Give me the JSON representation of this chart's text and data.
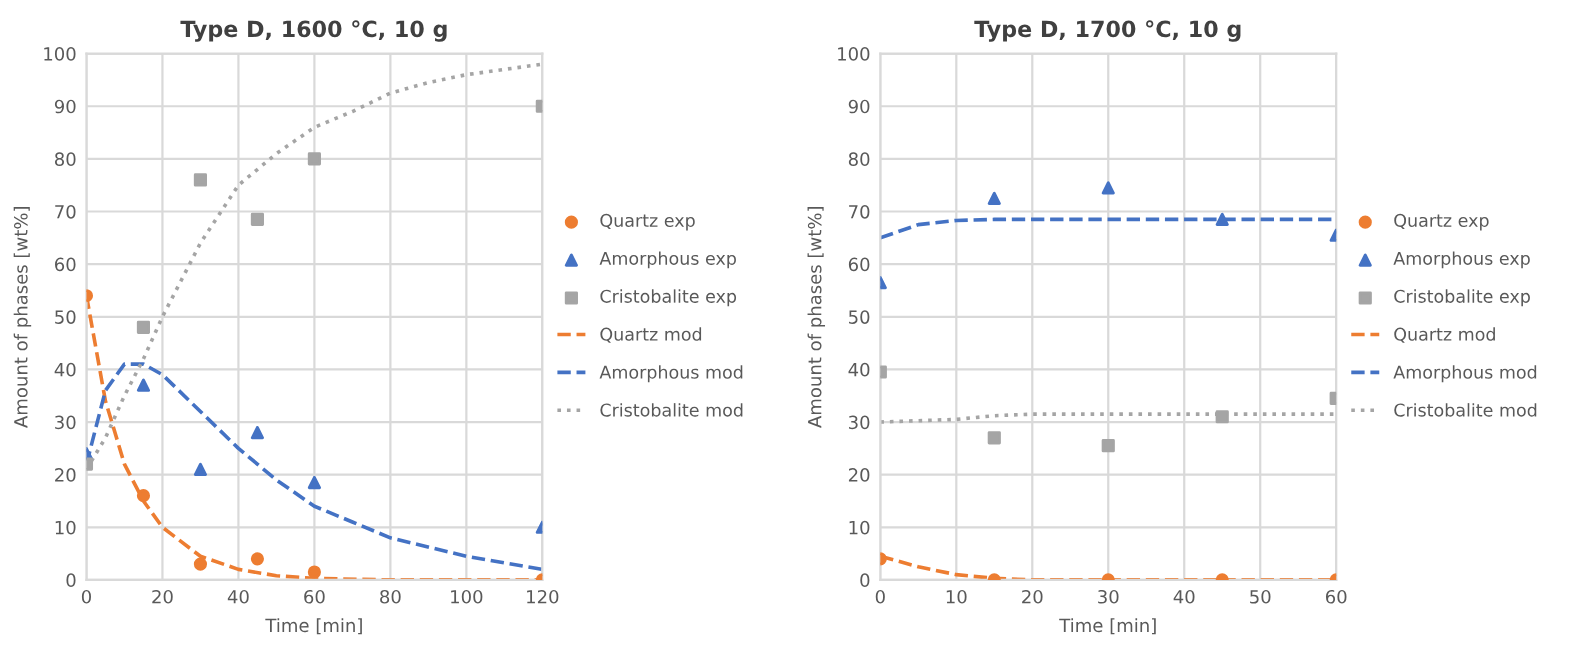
{
  "chart_data": [
    {
      "type": "scatter",
      "title": "Type D, 1600 °C, 10 g",
      "xlabel": "Time [min]",
      "ylabel": "Amount of phases [wt%]",
      "xlim": [
        0,
        120
      ],
      "xticks": [
        0,
        20,
        40,
        60,
        80,
        100,
        120
      ],
      "ylim": [
        0,
        100
      ],
      "yticks": [
        0,
        10,
        20,
        30,
        40,
        50,
        60,
        70,
        80,
        90,
        100
      ],
      "grid": true,
      "legend": "right",
      "series": [
        {
          "name": "Quartz exp",
          "marker": "circle",
          "color": "#ed7d31",
          "x": [
            0,
            15,
            30,
            45,
            60,
            120
          ],
          "values": [
            54,
            16,
            3,
            4,
            1.5,
            0
          ]
        },
        {
          "name": "Amorphous exp",
          "marker": "triangle",
          "color": "#4472c4",
          "x": [
            0,
            15,
            30,
            45,
            60,
            120
          ],
          "values": [
            24,
            37,
            21,
            28,
            18.5,
            10
          ]
        },
        {
          "name": "Cristobalite exp",
          "marker": "square",
          "color": "#a5a5a5",
          "x": [
            0,
            15,
            30,
            45,
            60,
            120
          ],
          "values": [
            22,
            48,
            76,
            68.5,
            80,
            90
          ]
        },
        {
          "name": "Quartz mod",
          "type": "line",
          "line_style": "dashed",
          "color": "#ed7d31",
          "x": [
            0,
            5,
            10,
            15,
            20,
            30,
            40,
            50,
            60,
            80,
            100,
            120
          ],
          "values": [
            54,
            34,
            22,
            15,
            10,
            4.5,
            2,
            0.8,
            0.3,
            0,
            0,
            0
          ]
        },
        {
          "name": "Amorphous mod",
          "type": "line",
          "line_style": "dashed",
          "color": "#4472c4",
          "x": [
            0,
            5,
            10,
            15,
            20,
            30,
            40,
            50,
            60,
            70,
            80,
            100,
            120
          ],
          "values": [
            22,
            36,
            41,
            41,
            39,
            32,
            25,
            19,
            14,
            11,
            8,
            4.5,
            2
          ]
        },
        {
          "name": "Cristobalite mod",
          "type": "line",
          "line_style": "dotted",
          "color": "#a5a5a5",
          "x": [
            0,
            5,
            10,
            15,
            20,
            30,
            40,
            50,
            60,
            70,
            80,
            90,
            100,
            120
          ],
          "values": [
            21,
            27,
            35,
            42,
            50,
            64,
            75,
            81,
            86,
            89,
            92.5,
            94.5,
            96,
            98
          ]
        }
      ]
    },
    {
      "type": "scatter",
      "title": "Type D, 1700 °C, 10 g",
      "xlabel": "Time [min]",
      "ylabel": "Amount of phases [wt%]",
      "xlim": [
        0,
        60
      ],
      "xticks": [
        0,
        10,
        20,
        30,
        40,
        50,
        60
      ],
      "ylim": [
        0,
        100
      ],
      "yticks": [
        0,
        10,
        20,
        30,
        40,
        50,
        60,
        70,
        80,
        90,
        100
      ],
      "grid": true,
      "legend": "right",
      "series": [
        {
          "name": "Quartz exp",
          "marker": "circle",
          "color": "#ed7d31",
          "x": [
            0,
            15,
            30,
            45,
            60
          ],
          "values": [
            4,
            0,
            0,
            0,
            0
          ]
        },
        {
          "name": "Amorphous exp",
          "marker": "triangle",
          "color": "#4472c4",
          "x": [
            0,
            15,
            30,
            45,
            60
          ],
          "values": [
            56.5,
            72.5,
            74.5,
            68.5,
            65.5
          ]
        },
        {
          "name": "Cristobalite exp",
          "marker": "square",
          "color": "#a5a5a5",
          "x": [
            0,
            15,
            30,
            45,
            60
          ],
          "values": [
            39.5,
            27,
            25.5,
            31,
            34.5
          ]
        },
        {
          "name": "Quartz mod",
          "type": "line",
          "line_style": "dashed",
          "color": "#ed7d31",
          "x": [
            0,
            5,
            10,
            15,
            20,
            60
          ],
          "values": [
            4.5,
            2.5,
            1,
            0.3,
            0,
            0
          ]
        },
        {
          "name": "Amorphous mod",
          "type": "line",
          "line_style": "dashed",
          "color": "#4472c4",
          "x": [
            0,
            5,
            10,
            15,
            60
          ],
          "values": [
            65,
            67.5,
            68.3,
            68.5,
            68.5
          ]
        },
        {
          "name": "Cristobalite mod",
          "type": "line",
          "line_style": "dotted",
          "color": "#a5a5a5",
          "x": [
            0,
            10,
            15,
            20,
            60
          ],
          "values": [
            30,
            30.5,
            31.2,
            31.5,
            31.5
          ]
        }
      ]
    }
  ]
}
